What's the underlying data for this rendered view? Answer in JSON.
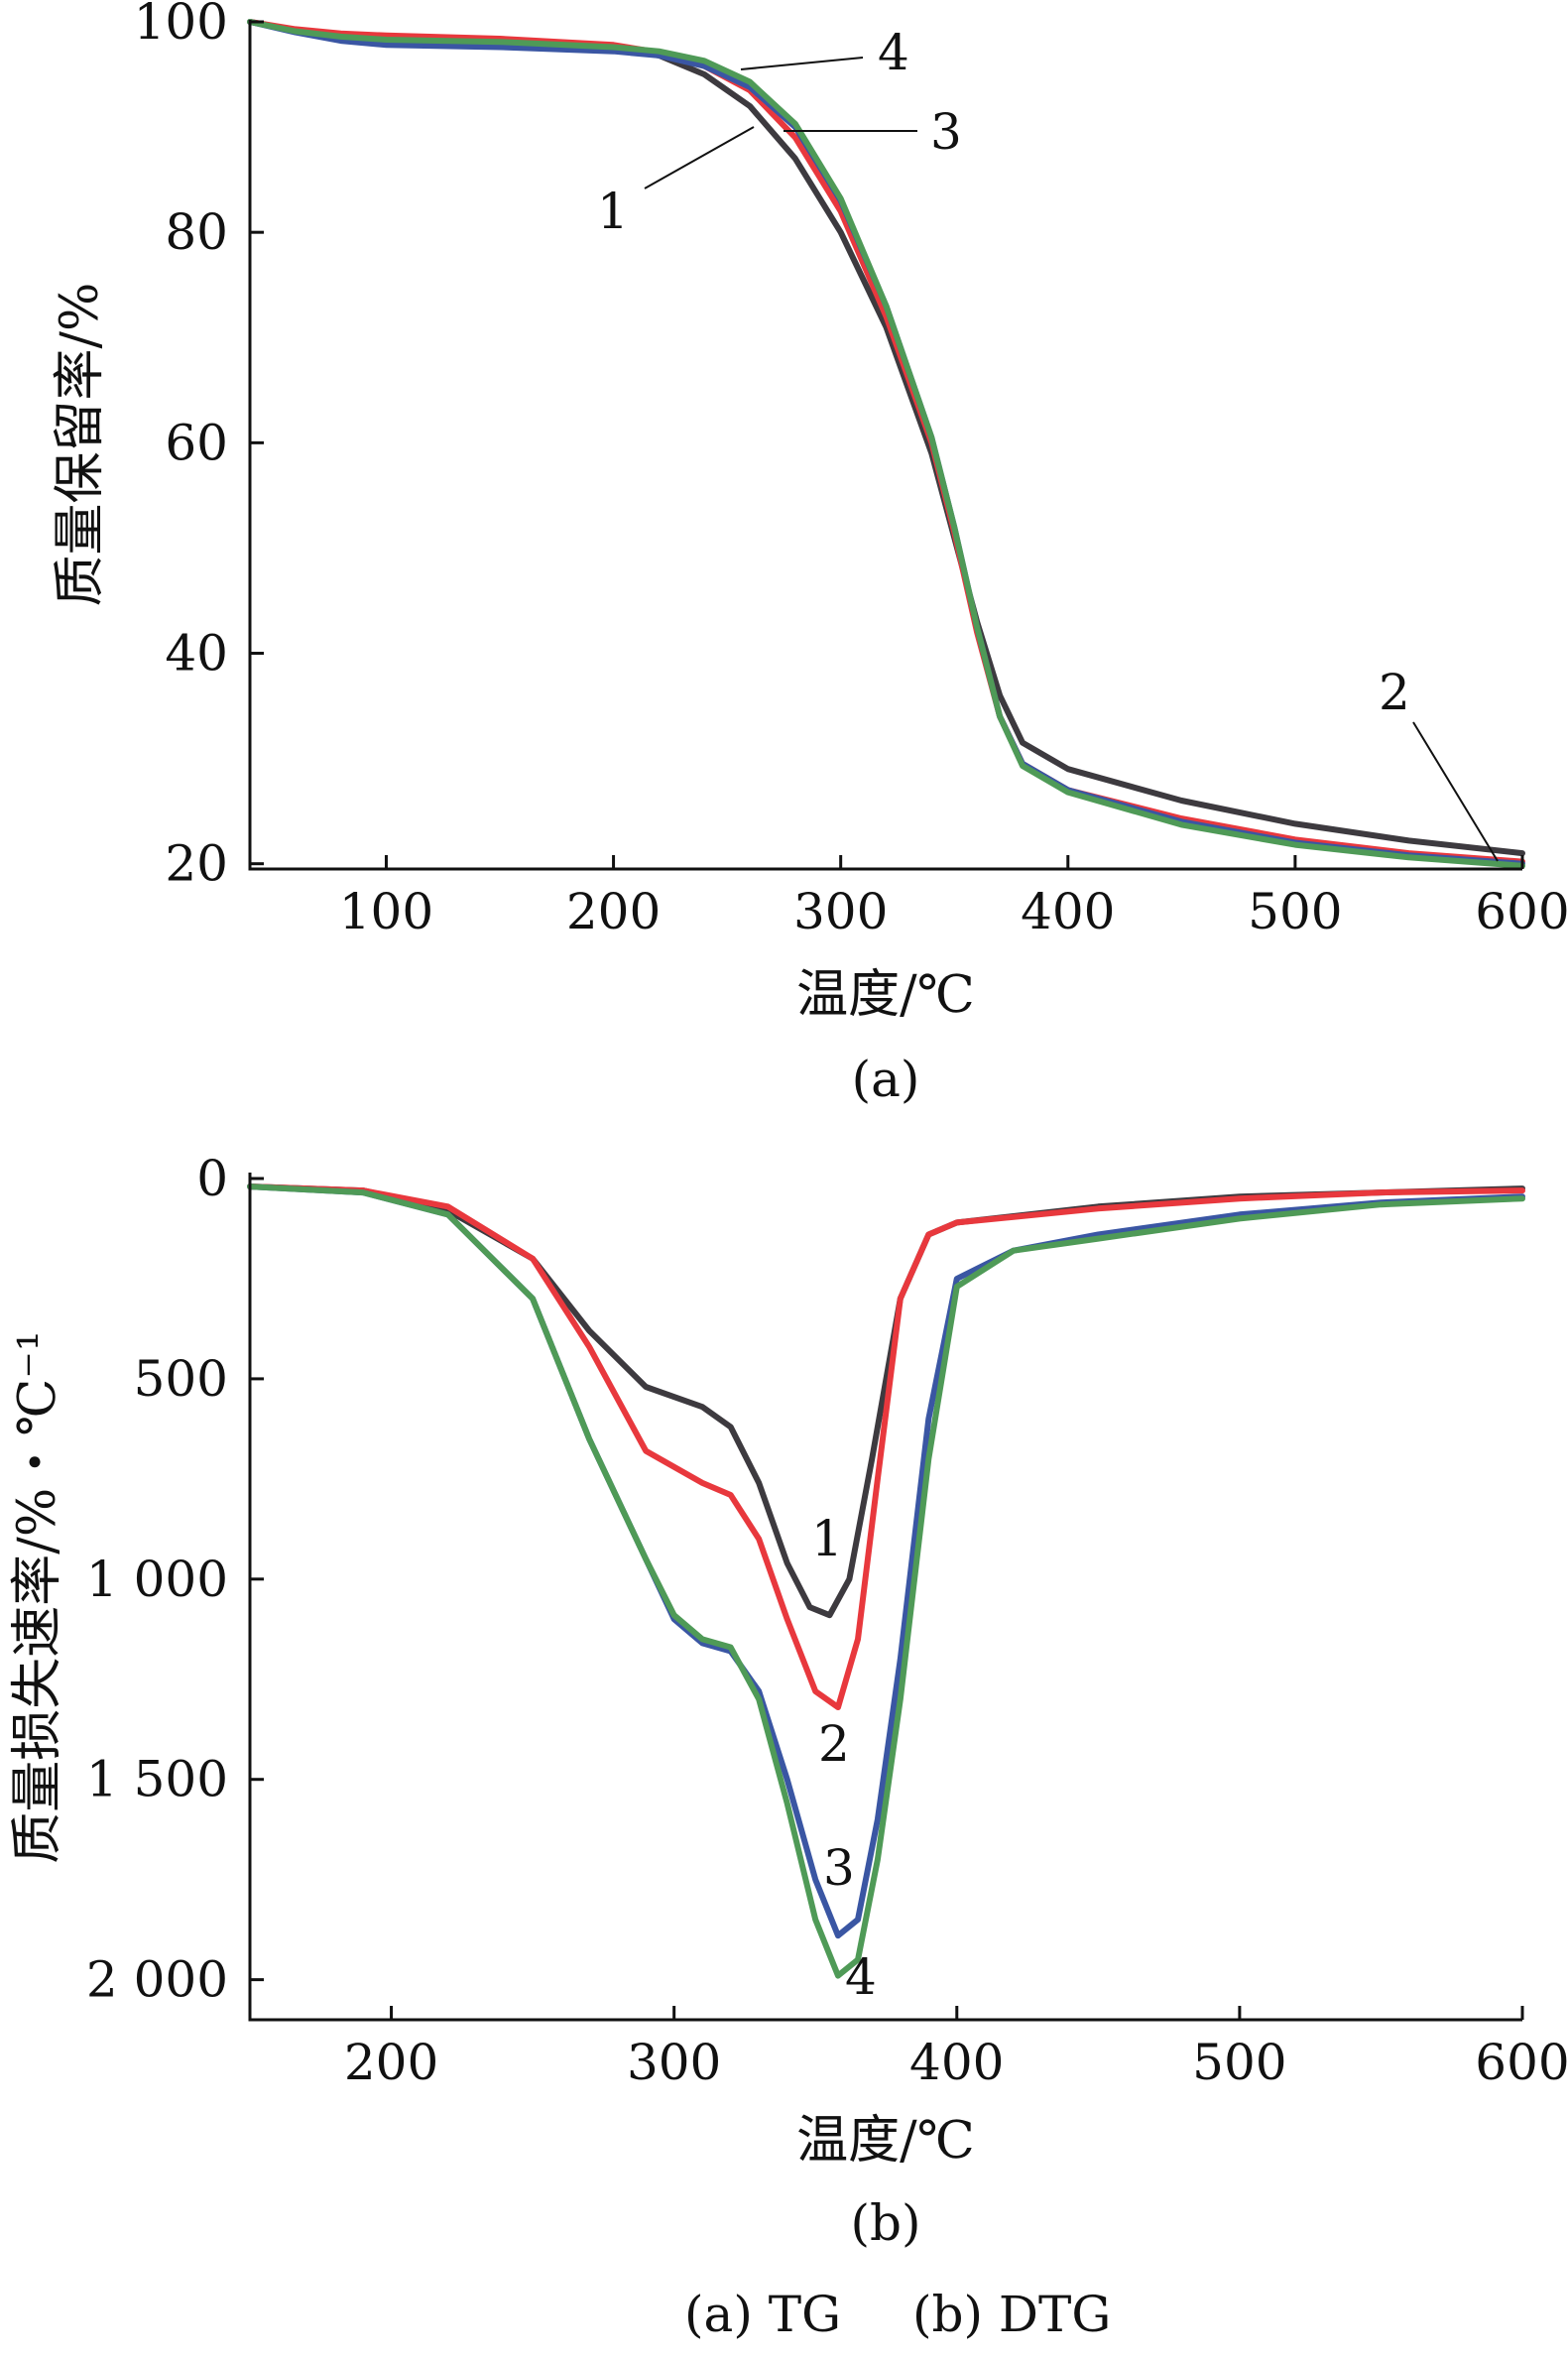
{
  "caption": {
    "label_a": "(a) TG",
    "label_b": "(b) DTG"
  },
  "chart_data": [
    {
      "type": "line",
      "panel_label": "(a)",
      "title": "",
      "xlabel": "温度/℃",
      "ylabel": "质量保留率/%",
      "xlim": [
        40,
        600
      ],
      "ylim": [
        19.5,
        100
      ],
      "x_ticks": [
        100,
        200,
        300,
        400,
        500,
        600
      ],
      "y_ticks": [
        20,
        40,
        60,
        80,
        100
      ],
      "y_tick_labels": [
        "20",
        "40",
        "60",
        "80",
        "100"
      ],
      "grid": false,
      "series": [
        {
          "color": "#3d3a3f",
          "curve_label": "1",
          "x": [
            40,
            60,
            80,
            100,
            150,
            200,
            220,
            240,
            260,
            280,
            300,
            320,
            340,
            350,
            360,
            370,
            380,
            400,
            450,
            500,
            550,
            600
          ],
          "y": [
            100,
            99.2,
            98.8,
            98.6,
            98.3,
            97.5,
            96.8,
            95.0,
            92.0,
            87.0,
            80.0,
            71.0,
            59.0,
            51.0,
            43.0,
            36.0,
            31.5,
            29.0,
            26.0,
            23.8,
            22.2,
            21.0
          ]
        },
        {
          "color": "#e8383d",
          "curve_label": "2",
          "x": [
            40,
            60,
            80,
            100,
            150,
            200,
            220,
            240,
            260,
            280,
            300,
            320,
            340,
            350,
            360,
            370,
            380,
            400,
            450,
            500,
            550,
            600
          ],
          "y": [
            100,
            99.3,
            98.9,
            98.7,
            98.4,
            97.8,
            97.1,
            95.8,
            93.5,
            89.0,
            82.0,
            72.0,
            60.0,
            51.5,
            42.0,
            34.0,
            29.5,
            27.0,
            24.3,
            22.3,
            21.0,
            20.2
          ]
        },
        {
          "color": "#3a56a3",
          "curve_label": "3",
          "x": [
            40,
            60,
            80,
            100,
            150,
            200,
            220,
            240,
            260,
            280,
            300,
            320,
            340,
            350,
            360,
            370,
            380,
            400,
            450,
            500,
            550,
            600
          ],
          "y": [
            100,
            99.0,
            98.2,
            97.8,
            97.6,
            97.2,
            96.8,
            95.8,
            93.8,
            90.0,
            83.0,
            73.0,
            60.5,
            52.0,
            42.5,
            34.0,
            29.5,
            27.0,
            24.0,
            22.0,
            20.8,
            20.0
          ]
        },
        {
          "color": "#4f9a57",
          "curve_label": "4",
          "x": [
            40,
            60,
            80,
            100,
            150,
            200,
            220,
            240,
            260,
            280,
            300,
            320,
            340,
            350,
            360,
            370,
            380,
            400,
            450,
            500,
            550,
            600
          ],
          "y": [
            100,
            99.1,
            98.6,
            98.3,
            98.1,
            97.6,
            97.2,
            96.3,
            94.3,
            90.3,
            83.2,
            73.0,
            60.5,
            52.0,
            42.5,
            34.0,
            29.3,
            26.8,
            23.7,
            21.8,
            20.6,
            19.8
          ]
        }
      ]
    },
    {
      "type": "line",
      "panel_label": "(b)",
      "title": "",
      "xlabel": "温度/℃",
      "ylabel": "质量损失速率/%・℃⁻¹",
      "xlim": [
        150,
        600
      ],
      "ylim": [
        0,
        2100
      ],
      "y_inverted": true,
      "x_ticks": [
        200,
        300,
        400,
        500,
        600
      ],
      "y_ticks": [
        0,
        500,
        1000,
        1500,
        2000
      ],
      "y_tick_labels": [
        "0",
        "500",
        "1 000",
        "1 500",
        "2 000"
      ],
      "grid": false,
      "series": [
        {
          "color": "#3d3a3f",
          "curve_label": "1",
          "x": [
            150,
            190,
            220,
            250,
            270,
            290,
            310,
            320,
            330,
            340,
            348,
            355,
            362,
            370,
            380,
            390,
            400,
            450,
            500,
            550,
            600
          ],
          "y": [
            20,
            30,
            80,
            200,
            380,
            520,
            570,
            620,
            760,
            960,
            1070,
            1090,
            1000,
            700,
            300,
            140,
            110,
            70,
            45,
            35,
            25
          ]
        },
        {
          "color": "#e8383d",
          "curve_label": "2",
          "x": [
            150,
            190,
            220,
            250,
            270,
            290,
            310,
            320,
            330,
            340,
            350,
            358,
            365,
            372,
            380,
            390,
            400,
            450,
            500,
            550,
            600
          ],
          "y": [
            20,
            30,
            70,
            200,
            420,
            680,
            760,
            790,
            900,
            1100,
            1280,
            1320,
            1150,
            750,
            300,
            140,
            110,
            75,
            50,
            35,
            30
          ]
        },
        {
          "color": "#3a56a3",
          "curve_label": "3",
          "x": [
            150,
            190,
            220,
            250,
            270,
            290,
            300,
            310,
            320,
            330,
            340,
            350,
            358,
            365,
            372,
            380,
            390,
            400,
            420,
            450,
            500,
            550,
            600
          ],
          "y": [
            20,
            35,
            90,
            300,
            650,
            950,
            1100,
            1160,
            1180,
            1280,
            1500,
            1750,
            1890,
            1850,
            1600,
            1200,
            600,
            250,
            180,
            140,
            90,
            60,
            45
          ]
        },
        {
          "color": "#4f9a57",
          "curve_label": "4",
          "x": [
            150,
            190,
            220,
            250,
            270,
            290,
            300,
            310,
            320,
            330,
            340,
            350,
            358,
            365,
            372,
            380,
            390,
            400,
            420,
            450,
            500,
            550,
            600
          ],
          "y": [
            20,
            35,
            90,
            300,
            650,
            950,
            1090,
            1150,
            1170,
            1300,
            1560,
            1850,
            1990,
            1950,
            1700,
            1300,
            700,
            270,
            180,
            150,
            100,
            65,
            50
          ]
        }
      ]
    }
  ]
}
